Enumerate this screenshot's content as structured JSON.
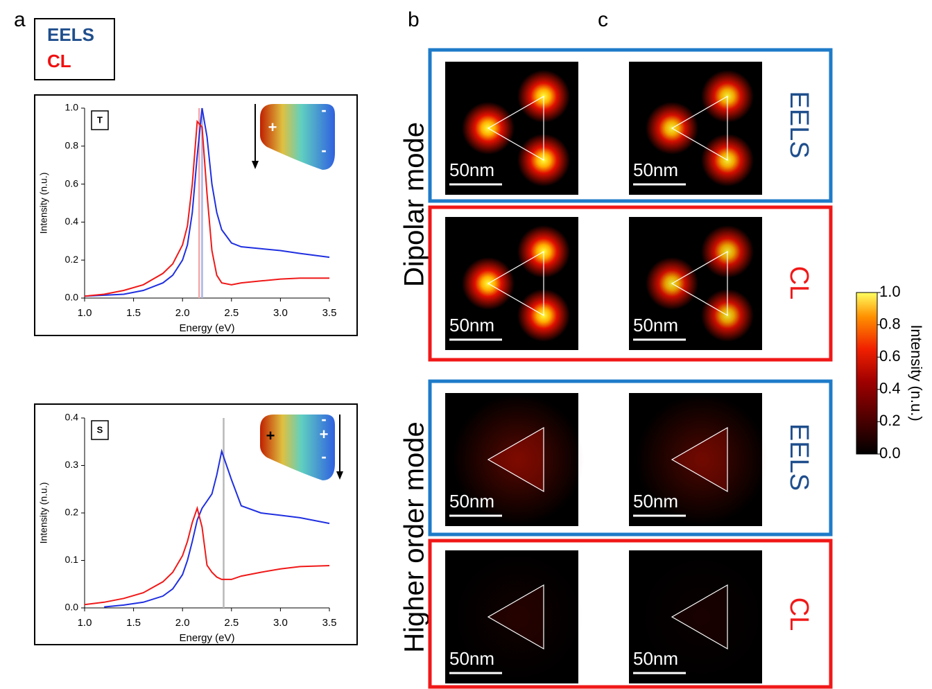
{
  "panel_labels": [
    "a",
    "b",
    "c"
  ],
  "legend": [
    "EELS",
    "CL"
  ],
  "chart_data": [
    {
      "type": "line",
      "annotation": "T",
      "inset_signs": [
        "+",
        "-",
        "-"
      ],
      "x_label": "Energy (eV)",
      "y_label": "Intensity (n.u.)",
      "x": [
        1.0,
        1.2,
        1.4,
        1.6,
        1.8,
        1.9,
        2.0,
        2.05,
        2.1,
        2.15,
        2.2,
        2.25,
        2.3,
        2.35,
        2.4,
        2.5,
        2.6,
        2.8,
        3.0,
        3.2,
        3.5
      ],
      "series": [
        {
          "name": "EELS",
          "color": "#1f2fe0",
          "values": [
            0.01,
            0.015,
            0.02,
            0.04,
            0.08,
            0.12,
            0.2,
            0.28,
            0.45,
            0.75,
            1.0,
            0.85,
            0.6,
            0.45,
            0.36,
            0.29,
            0.27,
            0.26,
            0.25,
            0.235,
            0.215
          ]
        },
        {
          "name": "CL",
          "color": "#f01818",
          "values": [
            0.01,
            0.02,
            0.04,
            0.07,
            0.13,
            0.18,
            0.28,
            0.38,
            0.6,
            0.93,
            0.9,
            0.55,
            0.25,
            0.12,
            0.08,
            0.07,
            0.08,
            0.09,
            0.1,
            0.105,
            0.105
          ]
        }
      ],
      "vlines": [
        {
          "x": 2.17,
          "color": "#f4a8a8"
        },
        {
          "x": 2.2,
          "color": "#a8b4e8"
        }
      ],
      "xlim": [
        1.0,
        3.5
      ],
      "ylim": [
        0,
        1.0
      ],
      "xticks": [
        {
          "value": 1,
          "label": "1.0"
        },
        1.5,
        {
          "value": 2,
          "label": "2.0"
        },
        2.5,
        {
          "value": 3,
          "label": "3.0"
        },
        3.5
      ],
      "yticks": [
        {
          "value": 0,
          "label": "0.0"
        },
        0.2,
        0.4,
        0.6,
        0.8,
        {
          "value": 1,
          "label": "1.0"
        }
      ]
    },
    {
      "type": "line",
      "annotation": "S",
      "inset_signs": [
        "+",
        "+",
        "-",
        "-"
      ],
      "x_label": "Energy (eV)",
      "y_label": "Intensity (n.u.)",
      "x": [
        1.0,
        1.2,
        1.4,
        1.6,
        1.8,
        1.9,
        2.0,
        2.05,
        2.1,
        2.15,
        2.2,
        2.25,
        2.3,
        2.35,
        2.4,
        2.5,
        2.6,
        2.8,
        3.0,
        3.2,
        3.5
      ],
      "series": [
        {
          "name": "EELS",
          "color": "#1f2fe0",
          "values": [
            null,
            0.002,
            0.006,
            0.012,
            0.025,
            0.04,
            0.07,
            0.1,
            0.14,
            0.185,
            0.21,
            0.225,
            0.24,
            0.28,
            0.33,
            0.27,
            0.215,
            0.2,
            0.195,
            0.19,
            0.178
          ]
        },
        {
          "name": "CL",
          "color": "#f01818",
          "values": [
            0.007,
            0.012,
            0.02,
            0.032,
            0.055,
            0.075,
            0.11,
            0.14,
            0.18,
            0.21,
            0.17,
            0.09,
            0.075,
            0.065,
            0.06,
            0.06,
            0.067,
            0.075,
            0.082,
            0.087,
            0.089
          ]
        }
      ],
      "vlines": [
        {
          "x": 2.42,
          "color": "#b8b8b8"
        }
      ],
      "xlim": [
        1.0,
        3.5
      ],
      "ylim": [
        0,
        0.4
      ],
      "xticks": [
        {
          "value": 1,
          "label": "1.0"
        },
        1.5,
        {
          "value": 2,
          "label": "2.0"
        },
        2.5,
        {
          "value": 3,
          "label": "3.0"
        },
        3.5
      ],
      "yticks": [
        {
          "value": 0,
          "label": "0.0"
        },
        0.1,
        0.2,
        0.3,
        0.4
      ]
    }
  ],
  "modes": [
    "Dipolar mode",
    "Higher order mode"
  ],
  "map_rows": [
    {
      "label": "EELS",
      "scale_bars": [
        "50nm",
        "50nm"
      ]
    },
    {
      "label": "CL",
      "scale_bars": [
        "50nm",
        "50nm"
      ]
    },
    {
      "label": "EELS",
      "scale_bars": [
        "50nm",
        "50nm"
      ]
    },
    {
      "label": "CL",
      "scale_bars": [
        "50nm",
        "50nm"
      ]
    }
  ],
  "colorbar": {
    "label": "Intensity (n.u.)",
    "lim": [
      0,
      1
    ],
    "ticks": [
      {
        "value": 0,
        "label": "0.0"
      },
      0.2,
      0.4,
      0.6,
      0.8,
      {
        "value": 1,
        "label": "1.0"
      }
    ]
  }
}
